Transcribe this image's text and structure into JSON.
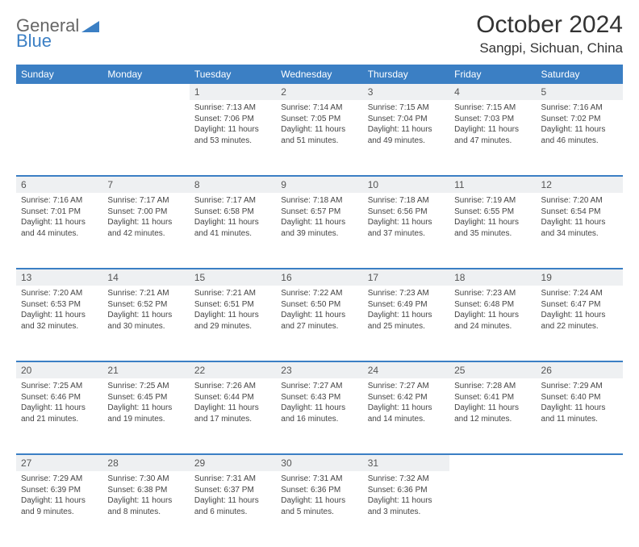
{
  "logo": {
    "general": "General",
    "blue": "Blue"
  },
  "title": "October 2024",
  "location": "Sangpi, Sichuan, China",
  "colors": {
    "header_bg": "#3b7fc4",
    "daynum_bg": "#eef0f2",
    "page_bg": "#ffffff",
    "text": "#444444"
  },
  "weekdays": [
    "Sunday",
    "Monday",
    "Tuesday",
    "Wednesday",
    "Thursday",
    "Friday",
    "Saturday"
  ],
  "weeks": [
    [
      null,
      null,
      {
        "d": "1",
        "sr": "7:13 AM",
        "ss": "7:06 PM",
        "dl": "11 hours and 53 minutes."
      },
      {
        "d": "2",
        "sr": "7:14 AM",
        "ss": "7:05 PM",
        "dl": "11 hours and 51 minutes."
      },
      {
        "d": "3",
        "sr": "7:15 AM",
        "ss": "7:04 PM",
        "dl": "11 hours and 49 minutes."
      },
      {
        "d": "4",
        "sr": "7:15 AM",
        "ss": "7:03 PM",
        "dl": "11 hours and 47 minutes."
      },
      {
        "d": "5",
        "sr": "7:16 AM",
        "ss": "7:02 PM",
        "dl": "11 hours and 46 minutes."
      }
    ],
    [
      {
        "d": "6",
        "sr": "7:16 AM",
        "ss": "7:01 PM",
        "dl": "11 hours and 44 minutes."
      },
      {
        "d": "7",
        "sr": "7:17 AM",
        "ss": "7:00 PM",
        "dl": "11 hours and 42 minutes."
      },
      {
        "d": "8",
        "sr": "7:17 AM",
        "ss": "6:58 PM",
        "dl": "11 hours and 41 minutes."
      },
      {
        "d": "9",
        "sr": "7:18 AM",
        "ss": "6:57 PM",
        "dl": "11 hours and 39 minutes."
      },
      {
        "d": "10",
        "sr": "7:18 AM",
        "ss": "6:56 PM",
        "dl": "11 hours and 37 minutes."
      },
      {
        "d": "11",
        "sr": "7:19 AM",
        "ss": "6:55 PM",
        "dl": "11 hours and 35 minutes."
      },
      {
        "d": "12",
        "sr": "7:20 AM",
        "ss": "6:54 PM",
        "dl": "11 hours and 34 minutes."
      }
    ],
    [
      {
        "d": "13",
        "sr": "7:20 AM",
        "ss": "6:53 PM",
        "dl": "11 hours and 32 minutes."
      },
      {
        "d": "14",
        "sr": "7:21 AM",
        "ss": "6:52 PM",
        "dl": "11 hours and 30 minutes."
      },
      {
        "d": "15",
        "sr": "7:21 AM",
        "ss": "6:51 PM",
        "dl": "11 hours and 29 minutes."
      },
      {
        "d": "16",
        "sr": "7:22 AM",
        "ss": "6:50 PM",
        "dl": "11 hours and 27 minutes."
      },
      {
        "d": "17",
        "sr": "7:23 AM",
        "ss": "6:49 PM",
        "dl": "11 hours and 25 minutes."
      },
      {
        "d": "18",
        "sr": "7:23 AM",
        "ss": "6:48 PM",
        "dl": "11 hours and 24 minutes."
      },
      {
        "d": "19",
        "sr": "7:24 AM",
        "ss": "6:47 PM",
        "dl": "11 hours and 22 minutes."
      }
    ],
    [
      {
        "d": "20",
        "sr": "7:25 AM",
        "ss": "6:46 PM",
        "dl": "11 hours and 21 minutes."
      },
      {
        "d": "21",
        "sr": "7:25 AM",
        "ss": "6:45 PM",
        "dl": "11 hours and 19 minutes."
      },
      {
        "d": "22",
        "sr": "7:26 AM",
        "ss": "6:44 PM",
        "dl": "11 hours and 17 minutes."
      },
      {
        "d": "23",
        "sr": "7:27 AM",
        "ss": "6:43 PM",
        "dl": "11 hours and 16 minutes."
      },
      {
        "d": "24",
        "sr": "7:27 AM",
        "ss": "6:42 PM",
        "dl": "11 hours and 14 minutes."
      },
      {
        "d": "25",
        "sr": "7:28 AM",
        "ss": "6:41 PM",
        "dl": "11 hours and 12 minutes."
      },
      {
        "d": "26",
        "sr": "7:29 AM",
        "ss": "6:40 PM",
        "dl": "11 hours and 11 minutes."
      }
    ],
    [
      {
        "d": "27",
        "sr": "7:29 AM",
        "ss": "6:39 PM",
        "dl": "11 hours and 9 minutes."
      },
      {
        "d": "28",
        "sr": "7:30 AM",
        "ss": "6:38 PM",
        "dl": "11 hours and 8 minutes."
      },
      {
        "d": "29",
        "sr": "7:31 AM",
        "ss": "6:37 PM",
        "dl": "11 hours and 6 minutes."
      },
      {
        "d": "30",
        "sr": "7:31 AM",
        "ss": "6:36 PM",
        "dl": "11 hours and 5 minutes."
      },
      {
        "d": "31",
        "sr": "7:32 AM",
        "ss": "6:36 PM",
        "dl": "11 hours and 3 minutes."
      },
      null,
      null
    ]
  ],
  "labels": {
    "sunrise": "Sunrise: ",
    "sunset": "Sunset: ",
    "daylight": "Daylight: "
  }
}
